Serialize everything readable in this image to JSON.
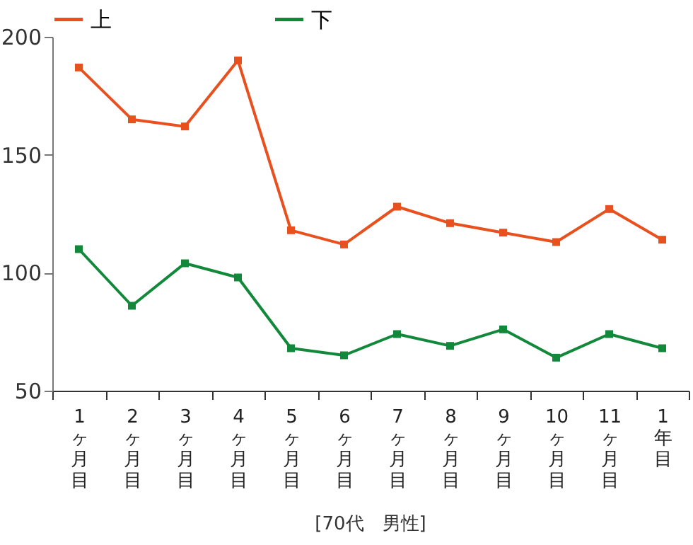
{
  "chart_data": {
    "type": "line",
    "categories": [
      "1ヶ月目",
      "2ヶ月目",
      "3ヶ月目",
      "4ヶ月目",
      "5ヶ月目",
      "6ヶ月目",
      "7ヶ月目",
      "8ヶ月目",
      "9ヶ月目",
      "10ヶ月目",
      "11ヶ月目",
      "1年目"
    ],
    "series": [
      {
        "name": "上",
        "color": "#e8501e",
        "values": [
          187,
          165,
          162,
          190,
          118,
          112,
          128,
          121,
          117,
          113,
          127,
          114
        ]
      },
      {
        "name": "下",
        "color": "#12893a",
        "values": [
          110,
          86,
          104,
          98,
          68,
          65,
          74,
          69,
          76,
          64,
          74,
          68
        ]
      }
    ],
    "ylim": [
      50,
      200
    ],
    "yticks": [
      50,
      100,
      150,
      200
    ],
    "grid": false,
    "legend": "top left",
    "marker": "square",
    "line_style": "solid",
    "annotations": [
      "[70代　男性]"
    ]
  }
}
